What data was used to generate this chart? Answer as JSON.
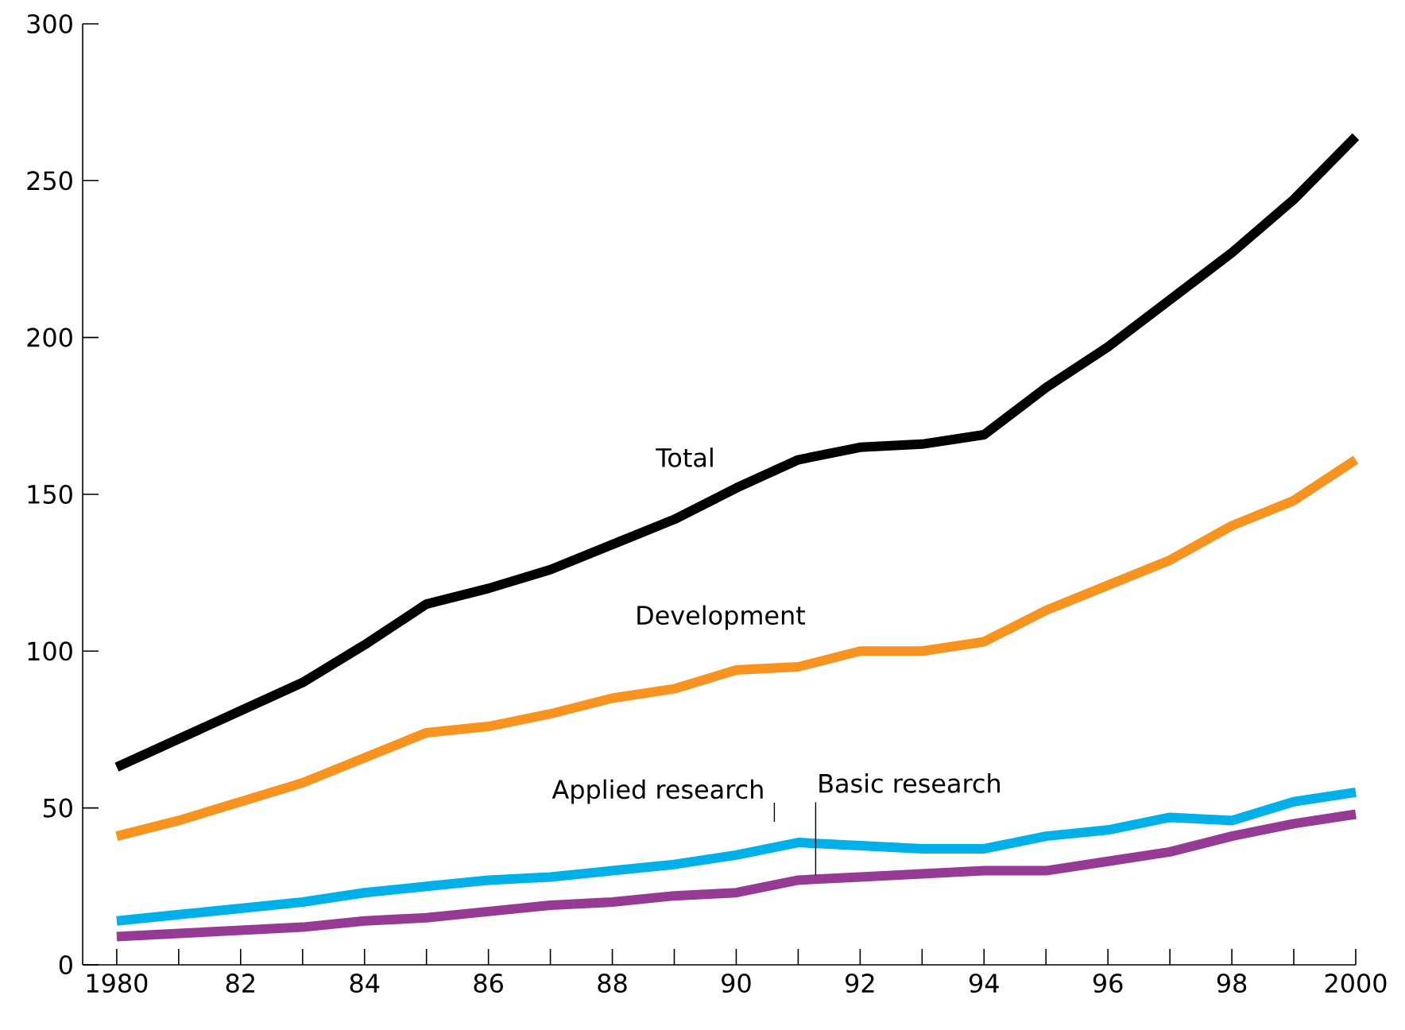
{
  "chart_data": {
    "type": "line",
    "x": [
      1980,
      1981,
      1982,
      1983,
      1984,
      1985,
      1986,
      1987,
      1988,
      1989,
      1990,
      1991,
      1992,
      1993,
      1994,
      1995,
      1996,
      1997,
      1998,
      1999,
      2000
    ],
    "series": [
      {
        "name": "Total",
        "color": "#000000",
        "values": [
          63,
          72,
          81,
          90,
          102,
          115,
          120,
          126,
          134,
          142,
          152,
          161,
          165,
          166,
          169,
          184,
          197,
          212,
          227,
          244,
          264
        ]
      },
      {
        "name": "Development",
        "color": "#f7931e",
        "values": [
          41,
          46,
          52,
          58,
          66,
          74,
          76,
          80,
          85,
          88,
          94,
          95,
          100,
          100,
          103,
          113,
          121,
          129,
          140,
          148,
          161
        ]
      },
      {
        "name": "Applied research",
        "color": "#00b0e8",
        "values": [
          14,
          16,
          18,
          20,
          23,
          25,
          27,
          28,
          30,
          32,
          35,
          39,
          38,
          37,
          37,
          41,
          43,
          47,
          46,
          52,
          55
        ]
      },
      {
        "name": "Basic research",
        "color": "#953b93",
        "values": [
          9,
          10,
          11,
          12,
          14,
          15,
          17,
          19,
          20,
          22,
          23,
          27,
          28,
          29,
          30,
          30,
          33,
          36,
          41,
          45,
          48
        ]
      }
    ],
    "xlim": [
      1979.45,
      2000
    ],
    "xticks": [
      {
        "value": 1980,
        "label": "1980"
      },
      {
        "value": 1981,
        "label": null
      },
      {
        "value": 1982,
        "label": "82"
      },
      {
        "value": 1983,
        "label": null
      },
      {
        "value": 1984,
        "label": "84"
      },
      {
        "value": 1985,
        "label": null
      },
      {
        "value": 1986,
        "label": "86"
      },
      {
        "value": 1987,
        "label": null
      },
      {
        "value": 1988,
        "label": "88"
      },
      {
        "value": 1989,
        "label": null
      },
      {
        "value": 1990,
        "label": "90"
      },
      {
        "value": 1991,
        "label": null
      },
      {
        "value": 1992,
        "label": "92"
      },
      {
        "value": 1993,
        "label": null
      },
      {
        "value": 1994,
        "label": "94"
      },
      {
        "value": 1995,
        "label": null
      },
      {
        "value": 1996,
        "label": "96"
      },
      {
        "value": 1997,
        "label": null
      },
      {
        "value": 1998,
        "label": "98"
      },
      {
        "value": 1999,
        "label": null
      },
      {
        "value": 2000,
        "label": "2000"
      }
    ],
    "ylim": [
      0,
      300
    ],
    "yticks": [
      0,
      50,
      100,
      150,
      200,
      250,
      300
    ],
    "legend": false,
    "grid": false,
    "marker": "none",
    "line_style": "solid"
  }
}
